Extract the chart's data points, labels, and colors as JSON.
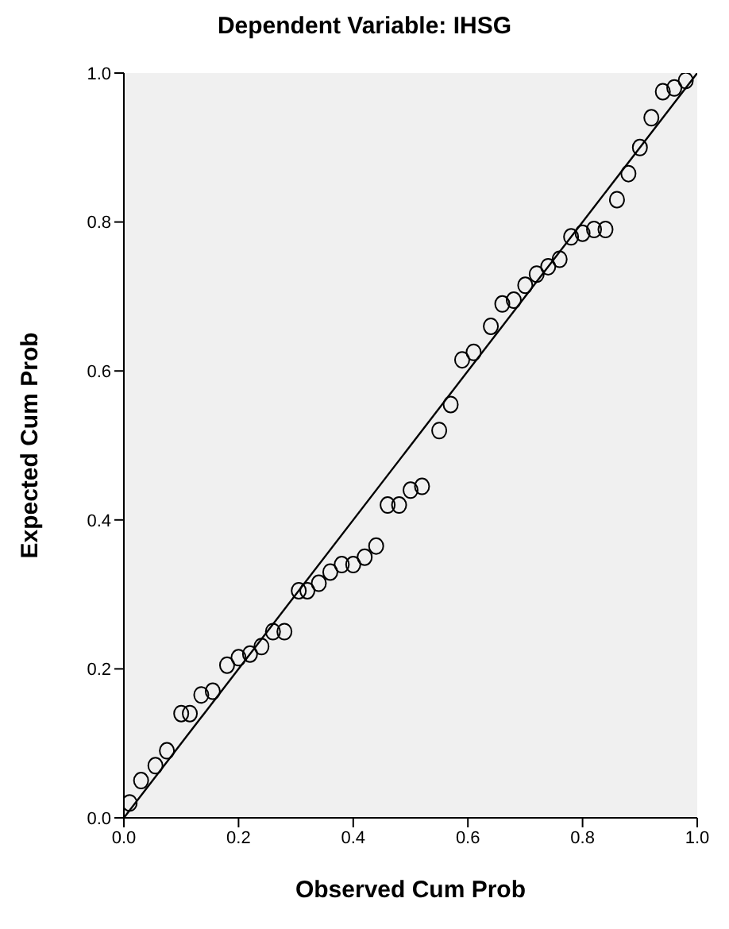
{
  "chart_data": {
    "type": "scatter",
    "title": "Dependent Variable: IHSG",
    "xlabel": "Observed Cum Prob",
    "ylabel": "Expected Cum Prob",
    "xlim": [
      0,
      1
    ],
    "ylim": [
      0,
      1
    ],
    "xticks": [
      {
        "value": 0,
        "label": "0.0"
      },
      {
        "value": 0.2,
        "label": "0.2"
      },
      {
        "value": 0.4,
        "label": "0.4"
      },
      {
        "value": 0.6,
        "label": "0.6"
      },
      {
        "value": 0.8,
        "label": "0.8"
      },
      {
        "value": 1,
        "label": "1.0"
      }
    ],
    "yticks": [
      {
        "value": 0,
        "label": "0.0"
      },
      {
        "value": 0.2,
        "label": "0.2"
      },
      {
        "value": 0.4,
        "label": "0.4"
      },
      {
        "value": 0.6,
        "label": "0.6"
      },
      {
        "value": 0.8,
        "label": "0.8"
      },
      {
        "value": 1,
        "label": "1.0"
      }
    ],
    "grid": false,
    "marker": "circle",
    "series": [
      {
        "color": "#000000",
        "x": [
          0.01,
          0.03,
          0.055,
          0.075,
          0.1,
          0.115,
          0.135,
          0.155,
          0.18,
          0.2,
          0.22,
          0.24,
          0.26,
          0.28,
          0.305,
          0.32,
          0.34,
          0.36,
          0.38,
          0.4,
          0.42,
          0.44,
          0.46,
          0.48,
          0.5,
          0.52,
          0.55,
          0.57,
          0.59,
          0.61,
          0.64,
          0.66,
          0.68,
          0.7,
          0.72,
          0.74,
          0.76,
          0.78,
          0.8,
          0.82,
          0.84,
          0.86,
          0.88,
          0.9,
          0.92,
          0.94,
          0.96,
          0.98
        ],
        "values": [
          0.02,
          0.05,
          0.07,
          0.09,
          0.14,
          0.14,
          0.165,
          0.17,
          0.205,
          0.215,
          0.22,
          0.23,
          0.25,
          0.25,
          0.305,
          0.305,
          0.315,
          0.33,
          0.34,
          0.34,
          0.35,
          0.365,
          0.42,
          0.42,
          0.44,
          0.445,
          0.52,
          0.555,
          0.615,
          0.625,
          0.66,
          0.69,
          0.695,
          0.715,
          0.73,
          0.74,
          0.75,
          0.78,
          0.785,
          0.79,
          0.79,
          0.83,
          0.865,
          0.9,
          0.94,
          0.975,
          0.98,
          0.99
        ]
      },
      {
        "type": "line",
        "marker": "none",
        "color": "#000000",
        "x": [
          0,
          1
        ],
        "values": [
          0,
          1
        ]
      }
    ]
  }
}
